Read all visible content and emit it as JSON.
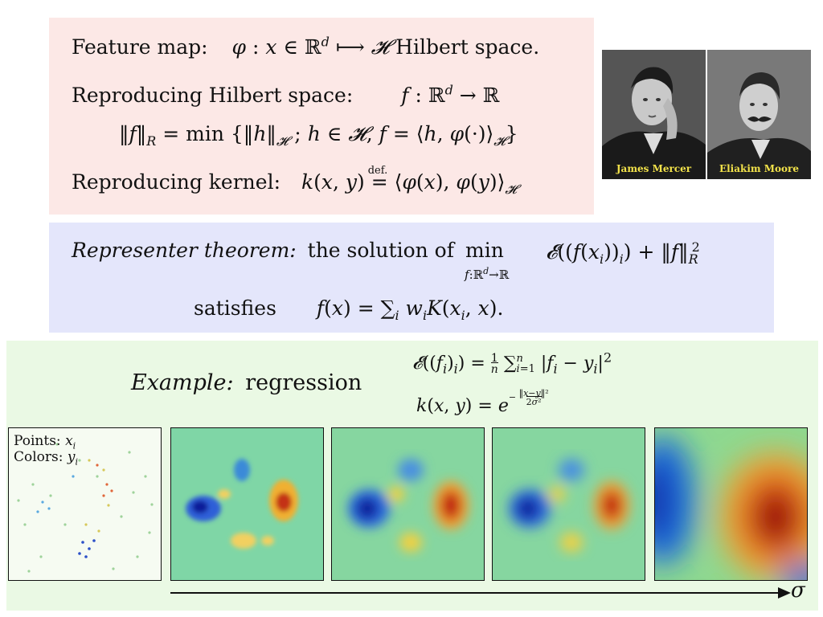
{
  "defs": {
    "feature_label": "Feature map:",
    "hilbert_text": "Hilbert space.",
    "reproducing_label": "Reproducing Hilbert space:",
    "kernel_label": "Reproducing kernel:",
    "def_mark": "def."
  },
  "portraits": [
    {
      "caption": "James Mercer"
    },
    {
      "caption": "Eliakim Moore"
    }
  ],
  "representer": {
    "title": "Representer theorem:",
    "text": "the solution of",
    "satisfies": "satisfies"
  },
  "example": {
    "title": "Example:",
    "word": "regression",
    "points_label": "Points:",
    "colors_label": "Colors:",
    "axis_symbol": "σ"
  },
  "colors": {
    "defs_bg": "#fce8e6",
    "rep_bg": "#e4e6fb",
    "example_bg": "#eaf9e4",
    "caption": "#f2e24a"
  }
}
